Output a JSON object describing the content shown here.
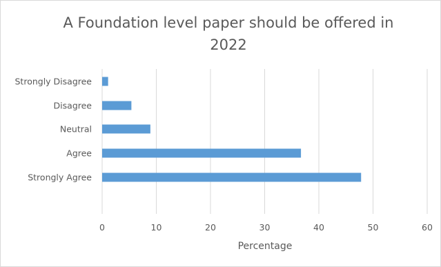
{
  "chart_data": {
    "type": "bar",
    "orientation": "horizontal",
    "title": "A Foundation level paper should be offered in 2022",
    "xlabel": "Percentage",
    "ylabel": "",
    "categories": [
      "Strongly Disagree",
      "Disagree",
      "Neutral",
      "Agree",
      "Strongly Agree"
    ],
    "values": [
      1.1,
      5.4,
      8.9,
      36.7,
      47.8
    ],
    "xlim": [
      0,
      60
    ],
    "xticks": [
      0,
      10,
      20,
      30,
      40,
      50,
      60
    ],
    "grid": "vertical",
    "legend": "none",
    "bar_color": "#5b9bd5",
    "grid_color": "#d9d9d9"
  }
}
